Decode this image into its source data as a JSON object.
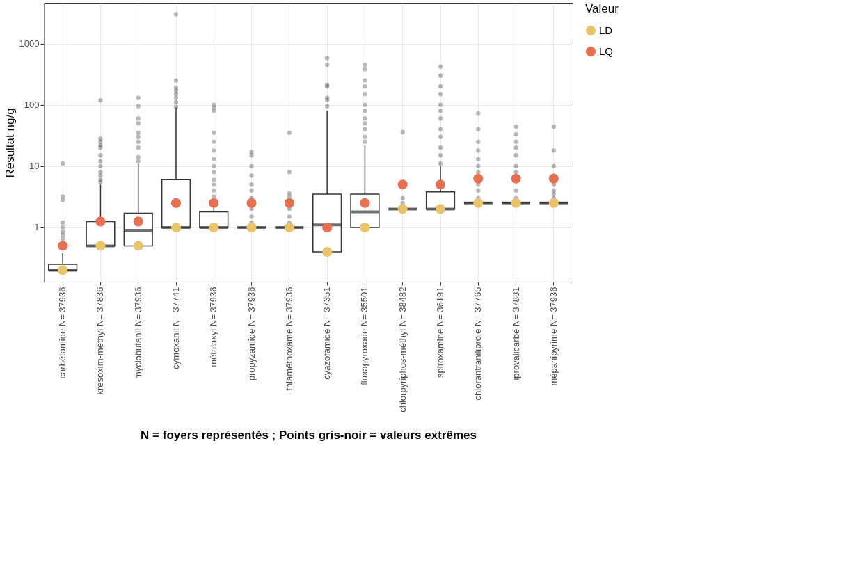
{
  "chart_data": {
    "type": "box",
    "xlabel": "N = foyers représentés ; Points gris-noir = valeurs extrêmes",
    "ylabel": "Résultat ng/g",
    "legend_title": "Valeur",
    "categories": [
      "carbétamide N= 37936",
      "krésoxim-méthyl N= 37836",
      "myclobutanil N= 37936",
      "cymoxanil N= 37741",
      "métalaxyl N= 37936",
      "propyzamide N= 37936",
      "thiaméthoxame N= 37936",
      "cyazofamide N= 37351",
      "fluxapyroxade N= 35501",
      "chlorpyriphos-méthyl N= 38482",
      "spiroxamine N= 36191",
      "chlorantraniliprole N= 37765",
      "iprovalicarbe N= 37881",
      "mépanipyrime N= 37936"
    ],
    "boxes": [
      {
        "low": 0.2,
        "q1": 0.2,
        "median": 0.2,
        "q3": 0.25,
        "high": 0.38,
        "outliers": [
          0.65,
          0.75,
          0.85,
          1.0,
          1.2,
          2.8,
          3.2,
          11
        ]
      },
      {
        "low": 0.5,
        "q1": 0.5,
        "median": 0.5,
        "q3": 1.25,
        "high": 5,
        "outliers": [
          5.5,
          6,
          7,
          8,
          10,
          12,
          15,
          20,
          22,
          25,
          28,
          118
        ]
      },
      {
        "low": 0.5,
        "q1": 0.5,
        "median": 0.9,
        "q3": 1.7,
        "high": 11,
        "outliers": [
          12,
          14,
          20,
          25,
          30,
          35,
          50,
          60,
          95,
          130
        ]
      },
      {
        "low": 1,
        "q1": 1,
        "median": 1,
        "q3": 6,
        "high": 90,
        "outliers": [
          92,
          110,
          130,
          150,
          170,
          190,
          250,
          3000
        ]
      },
      {
        "low": 1,
        "q1": 1,
        "median": 1,
        "q3": 1.8,
        "high": 3,
        "outliers": [
          3.2,
          4,
          5,
          6,
          8,
          10,
          13,
          18,
          25,
          35,
          80,
          90,
          100
        ]
      },
      {
        "low": 1,
        "q1": 1,
        "median": 1,
        "q3": 1,
        "high": 1,
        "outliers": [
          1.2,
          1.5,
          2,
          3,
          4,
          5,
          7,
          10,
          15,
          17
        ]
      },
      {
        "low": 1,
        "q1": 1,
        "median": 1,
        "q3": 1,
        "high": 1,
        "outliers": [
          1.2,
          1.5,
          2,
          3.2,
          3.6,
          8,
          35
        ]
      },
      {
        "low": 0.4,
        "q1": 0.4,
        "median": 1.1,
        "q3": 3.5,
        "high": 80,
        "outliers": [
          95,
          120,
          130,
          200,
          210,
          450,
          580
        ]
      },
      {
        "low": 1,
        "q1": 1,
        "median": 1.8,
        "q3": 3.5,
        "high": 22,
        "outliers": [
          25,
          30,
          40,
          50,
          60,
          80,
          100,
          150,
          200,
          250,
          380,
          450
        ]
      },
      {
        "low": 2,
        "q1": 2,
        "median": 2,
        "q3": 2,
        "high": 2,
        "outliers": [
          2.5,
          3,
          36
        ]
      },
      {
        "low": 2,
        "q1": 2,
        "median": 2,
        "q3": 3.8,
        "high": 10,
        "outliers": [
          11,
          15,
          20,
          30,
          40,
          60,
          80,
          100,
          150,
          200,
          300,
          420
        ]
      },
      {
        "low": 2.5,
        "q1": 2.5,
        "median": 2.5,
        "q3": 2.5,
        "high": 2.5,
        "outliers": [
          3,
          4,
          5,
          8,
          10,
          13,
          18,
          25,
          40,
          72
        ]
      },
      {
        "low": 2.5,
        "q1": 2.5,
        "median": 2.5,
        "q3": 2.5,
        "high": 2.5,
        "outliers": [
          3,
          4,
          8,
          10,
          15,
          20,
          25,
          33,
          44
        ]
      },
      {
        "low": 2.5,
        "q1": 2.5,
        "median": 2.5,
        "q3": 2.5,
        "high": 2.5,
        "outliers": [
          3,
          3.5,
          4,
          5,
          7,
          10,
          18,
          44
        ]
      }
    ],
    "series": [
      {
        "name": "LD",
        "type": "scatter",
        "color": "#e9c46a",
        "values": [
          0.2,
          0.5,
          0.5,
          1,
          1,
          1,
          1,
          0.4,
          1,
          2,
          2,
          2.5,
          2.5,
          2.5
        ]
      },
      {
        "name": "LQ",
        "type": "scatter",
        "color": "#e76f51",
        "values": [
          0.5,
          1.25,
          1.25,
          2.5,
          2.5,
          2.5,
          2.5,
          1,
          2.5,
          5,
          5,
          6.25,
          6.25,
          6.25
        ]
      }
    ],
    "marker": "circle",
    "log": "y",
    "ylim": [
      0.13,
      4500
    ],
    "yticks": [
      1,
      10,
      100,
      {
        "value": 1000,
        "label": "1000"
      }
    ],
    "color": "#333333",
    "grid": true,
    "legend": "right"
  }
}
